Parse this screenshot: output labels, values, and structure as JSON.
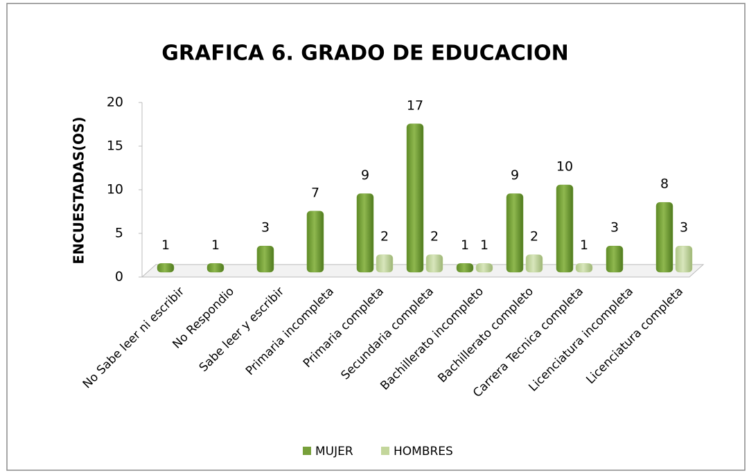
{
  "chart_data": {
    "type": "bar3d",
    "title": "GRAFICA 6. GRADO DE EDUCACION",
    "y_label": "ENCUESTADAS(OS)",
    "categories": [
      "No Sabe leer ni escribir",
      "No Respondio",
      "Sabe leer y escribir",
      "Primaria incompleta",
      "Primaria completa",
      "Secundaria completa",
      "Bachillerato incompleto",
      "Bachillerato completo",
      "Carrera Tecnica completa",
      "Licenciatura incompleta",
      "Licenciatura completa"
    ],
    "series": [
      {
        "name": "MUJER",
        "color": "#77a03a",
        "values": [
          1,
          1,
          3,
          7,
          9,
          17,
          1,
          9,
          10,
          3,
          8
        ]
      },
      {
        "name": "HOMBRES",
        "color": "#c3d69b",
        "values": [
          null,
          null,
          null,
          null,
          2,
          2,
          1,
          2,
          1,
          null,
          3
        ]
      }
    ],
    "ylim": [
      0,
      20
    ],
    "yticks": [
      0,
      5,
      10,
      15,
      20
    ],
    "legend": "bottom"
  }
}
